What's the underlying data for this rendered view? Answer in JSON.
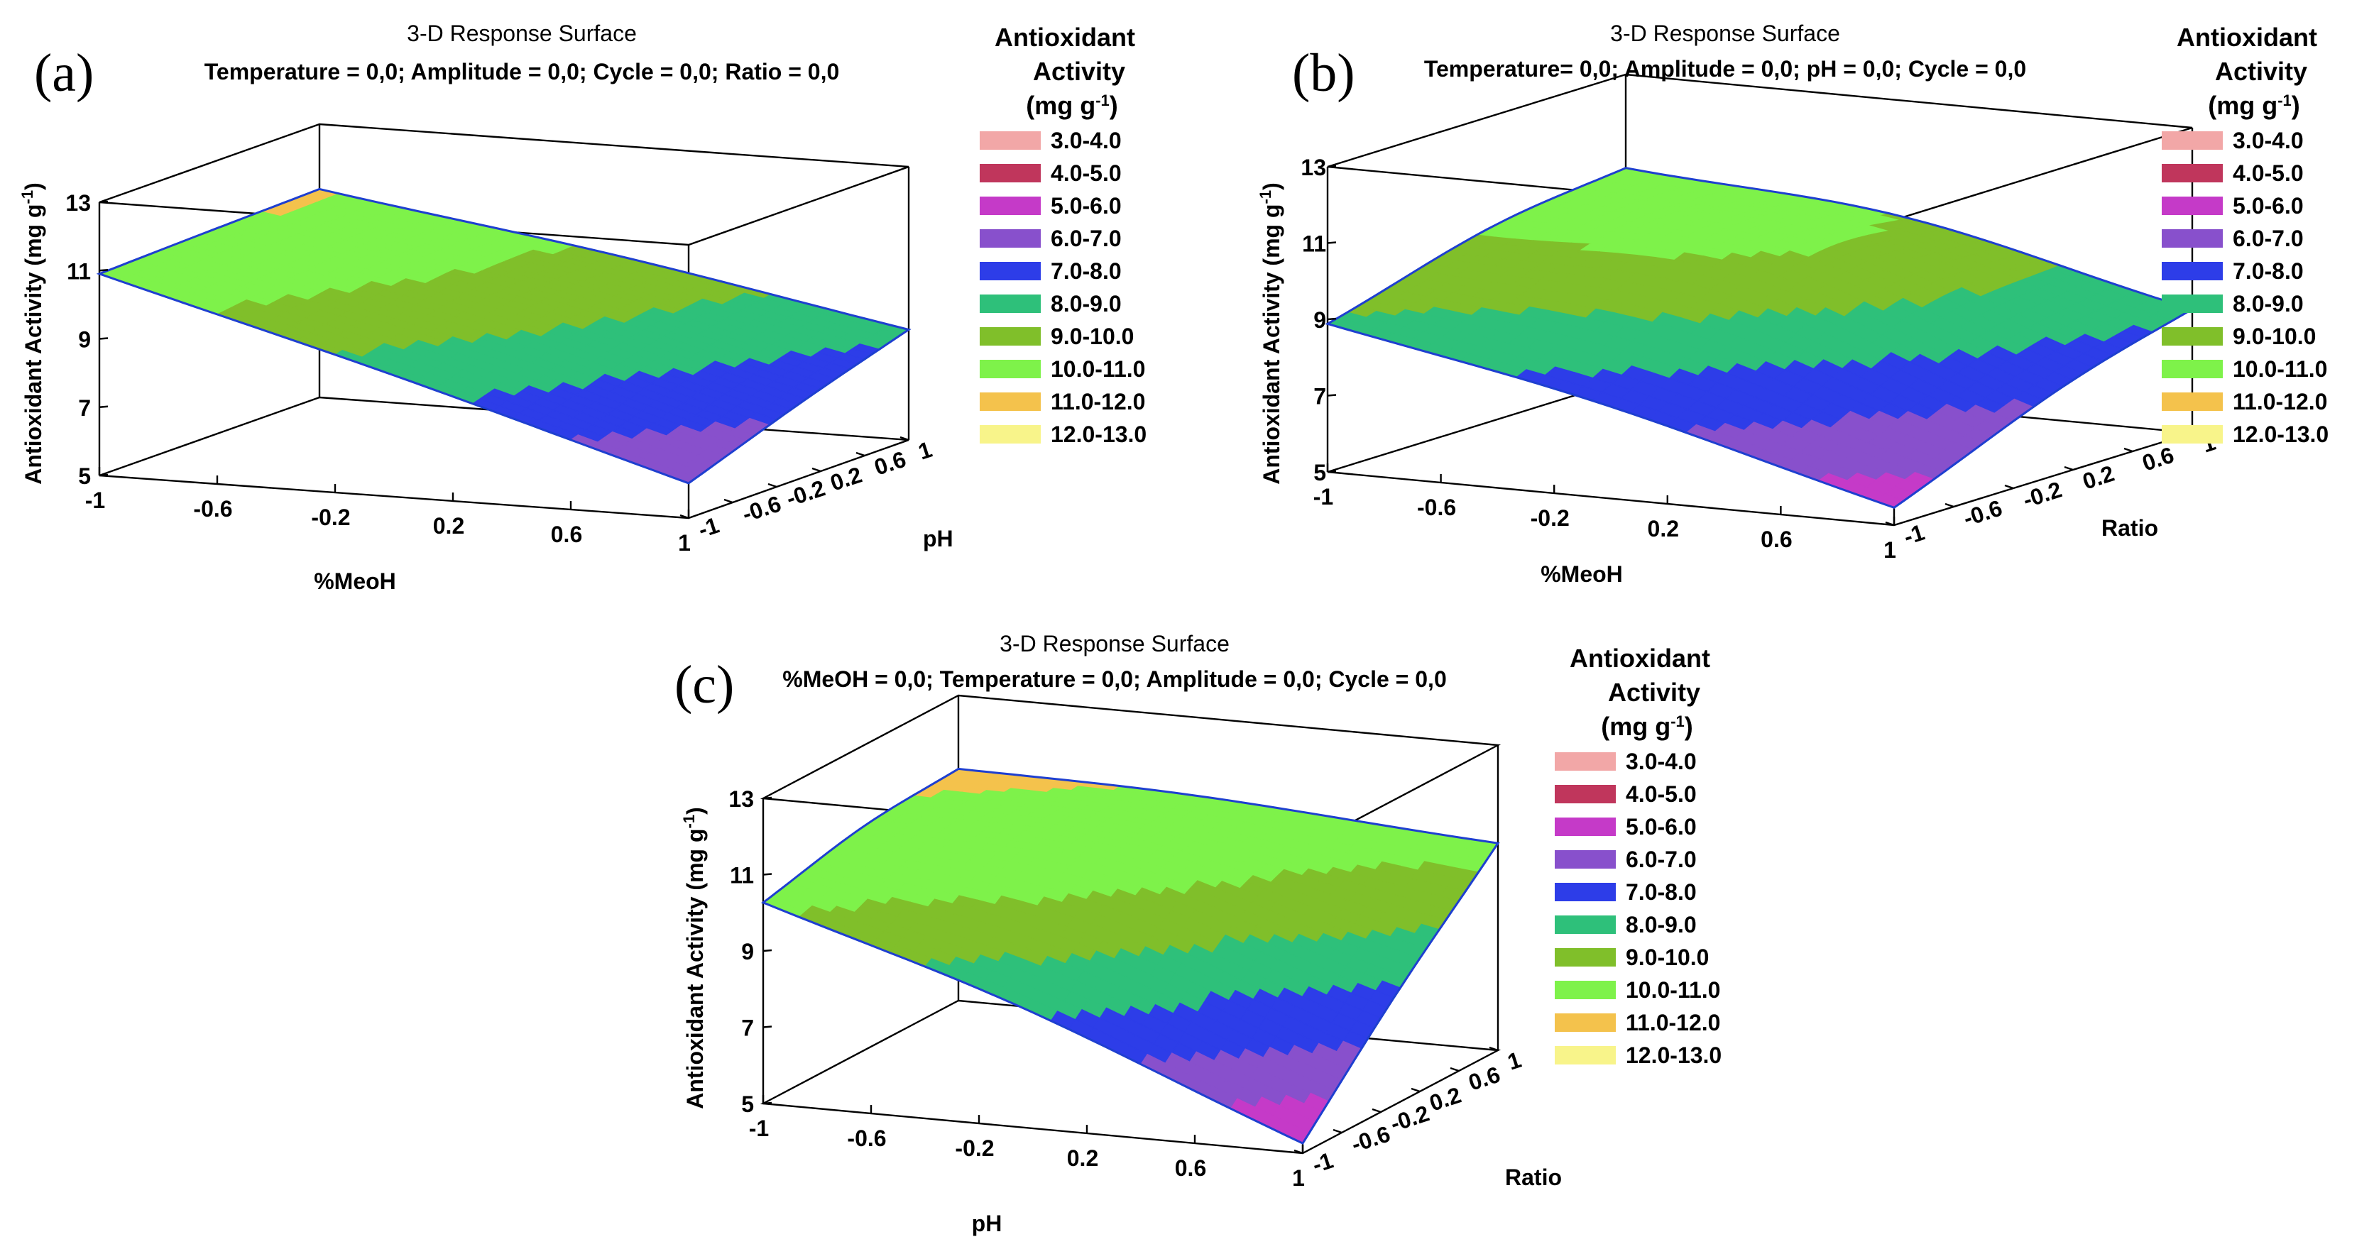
{
  "legend_title": [
    "Antioxidant",
    "Activity",
    "(mg g-1)"
  ],
  "legend_items": [
    {
      "label": "3.0-4.0",
      "color": "#f2a7a7"
    },
    {
      "label": "4.0-5.0",
      "color": "#c0365c"
    },
    {
      "label": "5.0-6.0",
      "color": "#c53ac8"
    },
    {
      "label": "6.0-7.0",
      "color": "#8850cc"
    },
    {
      "label": "7.0-8.0",
      "color": "#2d3de8"
    },
    {
      "label": "8.0-9.0",
      "color": "#2ec07a"
    },
    {
      "label": "9.0-10.0",
      "color": "#80bf2a"
    },
    {
      "label": "10.0-11.0",
      "color": "#7ef24a"
    },
    {
      "label": "11.0-12.0",
      "color": "#f4c24c"
    },
    {
      "label": "12.0-13.0",
      "color": "#f8f48a"
    }
  ],
  "chart_data": [
    {
      "type": "surface",
      "panel": "(a)",
      "title": "3-D Response  Surface",
      "subtitle": "Temperature = 0,0; Amplitude = 0,0; Cycle = 0,0; Ratio = 0,0",
      "xlabel": "%MeoH",
      "ylabel": "pH",
      "zlabel": "Antioxidant Activity (mg g-1)",
      "x_ticks": [
        "-1",
        "-0.6",
        "-0.2",
        "0.2",
        "0.6",
        "1"
      ],
      "y_ticks": [
        "-1",
        "-0.6",
        "-0.2",
        "0.2",
        "0.6",
        "1"
      ],
      "z_ticks": [
        "5",
        "7",
        "9",
        "11",
        "13"
      ],
      "xlim": [
        -1,
        1
      ],
      "ylim": [
        -1,
        1
      ],
      "zlim": [
        5,
        13
      ],
      "corner_values": {
        "x-1_y-1": 10.9,
        "x1_y-1": 6.0,
        "x1_y1": 8.2,
        "x-1_y1": 11.1
      },
      "max_value": 11.1
    },
    {
      "type": "surface",
      "panel": "(b)",
      "title": "3-D Response  Surface",
      "subtitle": "Temperature= 0,0; Amplitude = 0,0; pH = 0,0; Cycle = 0,0",
      "xlabel": "%MeoH",
      "ylabel": "Ratio",
      "zlabel": "Antioxidant Activity (mg g-1)",
      "x_ticks": [
        "-1",
        "-0.6",
        "-0.2",
        "0.2",
        "0.6",
        "1"
      ],
      "y_ticks": [
        "-1",
        "-0.6",
        "-0.2",
        "0.2",
        "0.6",
        "1"
      ],
      "z_ticks": [
        "5",
        "7",
        "9",
        "11",
        "13"
      ],
      "xlim": [
        -1,
        1
      ],
      "ylim": [
        -1,
        1
      ],
      "zlim": [
        5,
        13
      ],
      "corner_values": {
        "x-1_y-1": 8.8,
        "x1_y-1": 5.4,
        "x1_y1": 8.1,
        "x-1_y1": 10.4
      },
      "max_value": 11.6
    },
    {
      "type": "surface",
      "panel": "(c)",
      "title": "3-D Response  Surface",
      "subtitle": "%MeOH = 0,0; Temperature = 0,0; Amplitude = 0,0; Cycle = 0,0",
      "xlabel": "pH",
      "ylabel": "Ratio",
      "zlabel": "Antioxidant Activity (mg g-1)",
      "x_ticks": [
        "-1",
        "-0.6",
        "-0.2",
        "0.2",
        "0.6",
        "1"
      ],
      "y_ticks": [
        "-1",
        "-0.6",
        "-0.2",
        "0.2",
        "0.6",
        "1"
      ],
      "z_ticks": [
        "5",
        "7",
        "9",
        "11",
        "13"
      ],
      "xlim": [
        -1,
        1
      ],
      "ylim": [
        -1,
        1
      ],
      "zlim": [
        5,
        13
      ],
      "corner_values": {
        "x-1_y-1": 10.2,
        "x1_y-1": 5.2,
        "x1_y1": 10.4,
        "x-1_y1": 11.0
      },
      "max_value": 11.6
    }
  ]
}
